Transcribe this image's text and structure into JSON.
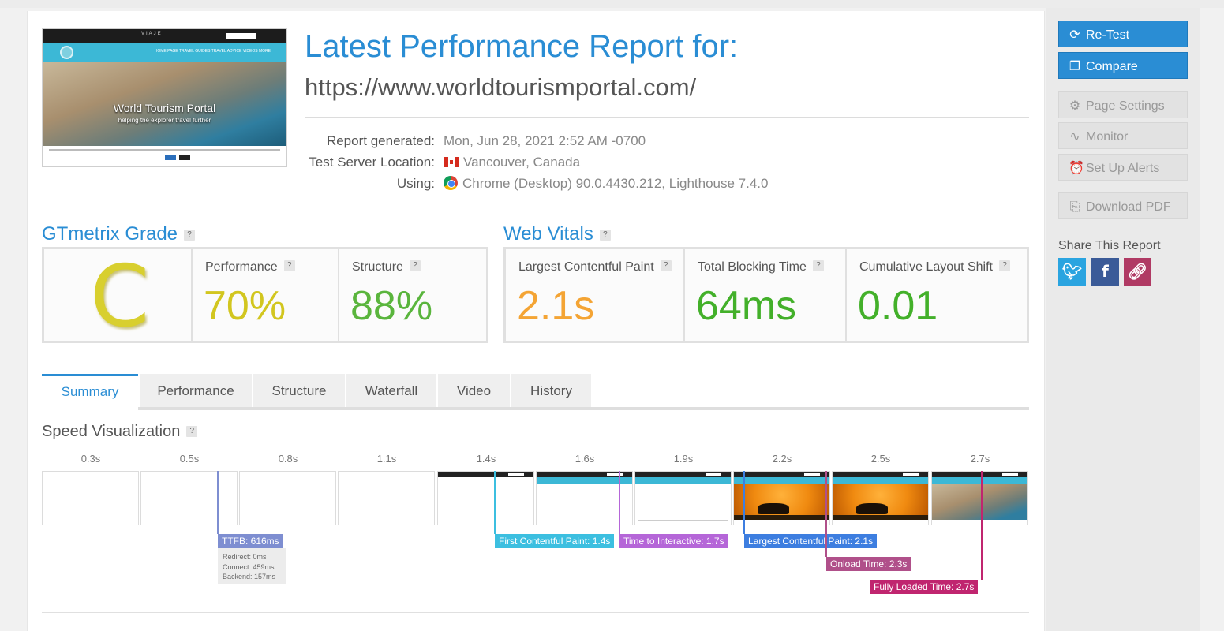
{
  "thumbnail": {
    "brand": "VIAJE",
    "nav_links": "HOME PAGE   TRAVEL GUIDES   TRAVEL ADVICE   VIDEOS   MORE",
    "hero_title": "World Tourism Portal",
    "hero_subtitle": "helping the explorer travel further"
  },
  "header": {
    "title": "Latest Performance Report for:",
    "url": "https://www.worldtourismportal.com/"
  },
  "meta": {
    "generated_label": "Report generated:",
    "generated_value": "Mon, Jun 28, 2021 2:52 AM -0700",
    "location_label": "Test Server Location:",
    "location_value": "Vancouver, Canada",
    "using_label": "Using:",
    "using_value": "Chrome (Desktop) 90.0.4430.212, Lighthouse 7.4.0"
  },
  "grade": {
    "title": "GTmetrix Grade",
    "help": "?",
    "letter": "C",
    "letter_color": "#d8cf2e",
    "performance_label": "Performance",
    "performance_value": "70%",
    "performance_color": "#d2c61f",
    "structure_label": "Structure",
    "structure_value": "88%",
    "structure_color": "#5ab53d"
  },
  "vitals": {
    "title": "Web Vitals",
    "help": "?",
    "lcp_label": "Largest Contentful Paint",
    "lcp_value": "2.1s",
    "lcp_color": "#f4a434",
    "tbt_label": "Total Blocking Time",
    "tbt_value": "64ms",
    "tbt_color": "#43b02a",
    "cls_label": "Cumulative Layout Shift",
    "cls_value": "0.01",
    "cls_color": "#43b02a"
  },
  "tabs": [
    "Summary",
    "Performance",
    "Structure",
    "Waterfall",
    "Video",
    "History"
  ],
  "speed": {
    "title": "Speed Visualization",
    "help": "?",
    "frame_times": [
      "0.3s",
      "0.5s",
      "0.8s",
      "1.1s",
      "1.4s",
      "1.6s",
      "1.9s",
      "2.2s",
      "2.5s",
      "2.7s"
    ],
    "markers": {
      "ttfb": "TTFB: 616ms",
      "fcp": "First Contentful Paint: 1.4s",
      "tti": "Time to Interactive: 1.7s",
      "lcp": "Largest Contentful Paint: 2.1s",
      "onload": "Onload Time: 2.3s",
      "fully": "Fully Loaded Time: 2.7s"
    },
    "ttfb_detail": {
      "redirect": "Redirect: 0ms",
      "connect": "Connect: 459ms",
      "backend": "Backend: 157ms"
    }
  },
  "sidebar": {
    "retest": "Re-Test",
    "compare": "Compare",
    "page_settings": "Page Settings",
    "monitor": "Monitor",
    "alerts": "Set Up Alerts",
    "pdf": "Download PDF",
    "share_title": "Share This Report"
  },
  "colors": {
    "accent": "#2a8dd4",
    "ttfb": "#7e8ed1",
    "fcp": "#3cbfe0",
    "tti": "#b566d8",
    "lcp": "#3d7ee0",
    "onload": "#b0508a",
    "fully": "#c0256f"
  }
}
